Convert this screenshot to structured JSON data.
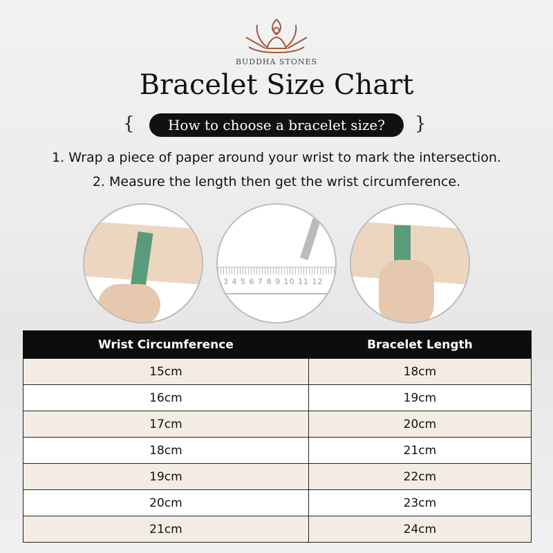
{
  "brand": "BUDDHA STONES",
  "title": "Bracelet Size Chart",
  "subtitle": "How to choose a bracelet size?",
  "steps": [
    "1. Wrap a piece of paper around your wrist to mark the intersection.",
    "2. Measure the length then get the wrist circumference."
  ],
  "ruler_numbers": "3 4 5 6 7 8 9 10 11 12",
  "table": {
    "headers": [
      "Wrist Circumference",
      "Bracelet Length"
    ],
    "rows": [
      [
        "15cm",
        "18cm"
      ],
      [
        "16cm",
        "19cm"
      ],
      [
        "17cm",
        "20cm"
      ],
      [
        "18cm",
        "21cm"
      ],
      [
        "19cm",
        "22cm"
      ],
      [
        "20cm",
        "23cm"
      ],
      [
        "21cm",
        "24cm"
      ]
    ]
  },
  "colors": {
    "logo": "#a0583a",
    "tape": "#5a9b7c",
    "header_bg": "#0d0d0d",
    "row_alt": "#f3ece4"
  }
}
